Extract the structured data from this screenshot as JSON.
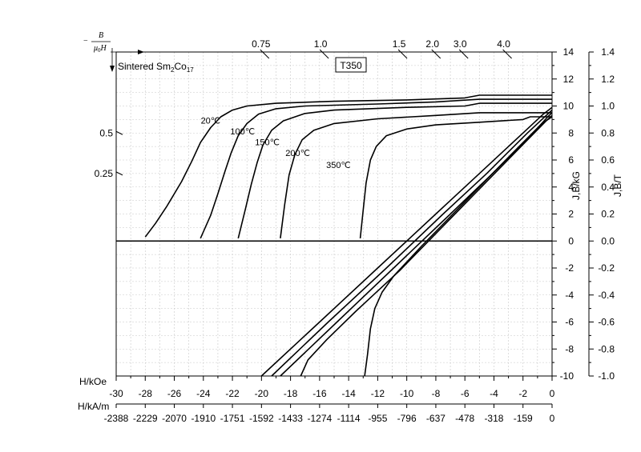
{
  "chart_data": {
    "type": "line",
    "material_label": {
      "main": "Sintered Sm",
      "sub1": "2",
      "mid": "Co",
      "sub2": "17"
    },
    "grade_label": "T350",
    "permeance_axis_label": {
      "minus": "−",
      "numerator": "B",
      "mu": "μ",
      "sub0": "0",
      "H": "H"
    },
    "x_axis": {
      "label_koe": "H/kOe",
      "label_kam": "H/kA/m",
      "range_koe": [
        -30,
        0
      ],
      "ticks_koe": [
        "-30",
        "-28",
        "-26",
        "-24",
        "-22",
        "-20",
        "-18",
        "-16",
        "-14",
        "-12",
        "-10",
        "-8",
        "-6",
        "-4",
        "-2",
        "0"
      ],
      "ticks_kam": [
        "-2388",
        "-2229",
        "-2070",
        "-1910",
        "-1751",
        "-1592",
        "-1433",
        "-1274",
        "-1114",
        "-955",
        "-796",
        "-637",
        "-478",
        "-318",
        "-159",
        "0"
      ]
    },
    "y_axis_left_kg": {
      "label": "J,B/kG",
      "range": [
        -10,
        14
      ],
      "ticks": [
        "-10",
        "-8",
        "-6",
        "-4",
        "-2",
        "0",
        "2",
        "4",
        "6",
        "8",
        "10",
        "12",
        "14"
      ]
    },
    "y_axis_right_t": {
      "label": "J,B/T",
      "range": [
        -1.0,
        1.4
      ],
      "ticks": [
        "-1.0",
        "-0.8",
        "-0.6",
        "-0.4",
        "-0.2",
        "0.0",
        "0.2",
        "0.4",
        "0.6",
        "0.8",
        "1.0",
        "1.2",
        "1.4"
      ]
    },
    "permeance_ticks_top": [
      {
        "label": "0.75",
        "x": -19.7
      },
      {
        "label": "1.0",
        "x": -15.6
      },
      {
        "label": "1.5",
        "x": -10.2
      },
      {
        "label": "2.0",
        "x": -7.9
      },
      {
        "label": "3.0",
        "x": -6.0
      },
      {
        "label": "4.0",
        "x": -3.0
      }
    ],
    "permeance_ticks_left": [
      {
        "label": "0.5",
        "y": 8.0
      },
      {
        "label": "0.25",
        "y": 5.0
      }
    ],
    "grid": true,
    "series": [
      {
        "name": "20℃",
        "label_at": [
          -23.5,
          8.7
        ],
        "J": [
          [
            -28.0,
            0.3
          ],
          [
            -27.3,
            1.3
          ],
          [
            -26.5,
            2.6
          ],
          [
            -25.5,
            4.4
          ],
          [
            -24.8,
            5.9
          ],
          [
            -24.2,
            7.3
          ],
          [
            -23.5,
            8.4
          ],
          [
            -22.8,
            9.2
          ],
          [
            -22.0,
            9.7
          ],
          [
            -21.0,
            10.0
          ],
          [
            -19.0,
            10.2
          ],
          [
            -15.0,
            10.35
          ],
          [
            -10.0,
            10.45
          ],
          [
            -6.0,
            10.6
          ],
          [
            -5.0,
            10.8
          ],
          [
            0,
            10.8
          ]
        ],
        "B": [
          [
            -20.0,
            -10.0
          ],
          [
            -16.0,
            -6.0
          ],
          [
            -12.0,
            -2.0
          ],
          [
            -8.0,
            2.0
          ],
          [
            -5.0,
            5.0
          ],
          [
            -2.0,
            8.0
          ],
          [
            -0.6,
            9.4
          ],
          [
            0,
            9.9
          ]
        ]
      },
      {
        "name": "100℃",
        "label_at": [
          -21.3,
          7.9
        ],
        "J": [
          [
            -24.2,
            0.2
          ],
          [
            -23.5,
            1.9
          ],
          [
            -23.0,
            3.5
          ],
          [
            -22.5,
            5.2
          ],
          [
            -22.1,
            6.5
          ],
          [
            -21.6,
            7.8
          ],
          [
            -21.0,
            8.7
          ],
          [
            -20.2,
            9.4
          ],
          [
            -19.0,
            9.8
          ],
          [
            -17.0,
            10.0
          ],
          [
            -12.0,
            10.15
          ],
          [
            -8.0,
            10.3
          ],
          [
            -5.0,
            10.5
          ],
          [
            0,
            10.5
          ]
        ],
        "B": [
          [
            -19.3,
            -10.0
          ],
          [
            -15.4,
            -6.0
          ],
          [
            -11.4,
            -2.0
          ],
          [
            -7.5,
            2.0
          ],
          [
            -4.5,
            5.0
          ],
          [
            -1.7,
            8.0
          ],
          [
            -0.4,
            9.3
          ],
          [
            0,
            9.7
          ]
        ]
      },
      {
        "name": "150℃",
        "label_at": [
          -19.6,
          7.1
        ],
        "J": [
          [
            -21.6,
            0.2
          ],
          [
            -21.1,
            2.4
          ],
          [
            -20.7,
            4.2
          ],
          [
            -20.3,
            5.8
          ],
          [
            -19.9,
            7.1
          ],
          [
            -19.3,
            8.2
          ],
          [
            -18.5,
            8.9
          ],
          [
            -17.0,
            9.45
          ],
          [
            -15.0,
            9.7
          ],
          [
            -10.0,
            9.9
          ],
          [
            -6.0,
            10.0
          ],
          [
            -5.0,
            10.2
          ],
          [
            0,
            10.2
          ]
        ],
        "B": [
          [
            -18.7,
            -10.0
          ],
          [
            -14.8,
            -6.0
          ],
          [
            -10.9,
            -2.0
          ],
          [
            -7.0,
            2.0
          ],
          [
            -4.1,
            5.0
          ],
          [
            -1.3,
            8.0
          ],
          [
            -0.3,
            9.2
          ],
          [
            0,
            9.5
          ]
        ]
      },
      {
        "name": "200℃",
        "label_at": [
          -17.5,
          6.3
        ],
        "J": [
          [
            -18.7,
            0.2
          ],
          [
            -18.4,
            2.7
          ],
          [
            -18.1,
            4.9
          ],
          [
            -17.7,
            6.4
          ],
          [
            -17.2,
            7.5
          ],
          [
            -16.4,
            8.2
          ],
          [
            -15.0,
            8.7
          ],
          [
            -12.0,
            9.05
          ],
          [
            -8.0,
            9.3
          ],
          [
            -5.0,
            9.5
          ],
          [
            0,
            9.5
          ]
        ],
        "B": [
          [
            -17.3,
            -10.0
          ],
          [
            -16.8,
            -8.8
          ],
          [
            -15.5,
            -7.3
          ],
          [
            -13.5,
            -5.2
          ],
          [
            -10.5,
            -2.2
          ],
          [
            -7.5,
            1.1
          ],
          [
            -4.5,
            4.4
          ],
          [
            -1.5,
            7.7
          ],
          [
            -0.4,
            8.9
          ],
          [
            0,
            9.3
          ]
        ]
      },
      {
        "name": "350℃",
        "label_at": [
          -14.7,
          5.4
        ],
        "J": [
          [
            -13.2,
            0.2
          ],
          [
            -13.0,
            2.3
          ],
          [
            -12.8,
            4.3
          ],
          [
            -12.5,
            6.0
          ],
          [
            -12.1,
            7.0
          ],
          [
            -11.4,
            7.8
          ],
          [
            -10.0,
            8.3
          ],
          [
            -8.0,
            8.6
          ],
          [
            -5.0,
            8.8
          ],
          [
            -2.0,
            9.0
          ],
          [
            -1.5,
            9.2
          ],
          [
            0,
            9.2
          ]
        ],
        "B": [
          [
            -12.9,
            -10.0
          ],
          [
            -12.7,
            -8.4
          ],
          [
            -12.5,
            -6.5
          ],
          [
            -12.2,
            -5.0
          ],
          [
            -11.7,
            -3.8
          ],
          [
            -10.9,
            -2.6
          ],
          [
            -9.0,
            -0.4
          ],
          [
            -6.0,
            2.9
          ],
          [
            -3.0,
            6.2
          ],
          [
            -0.7,
            8.7
          ],
          [
            0,
            9.2
          ]
        ]
      }
    ]
  }
}
